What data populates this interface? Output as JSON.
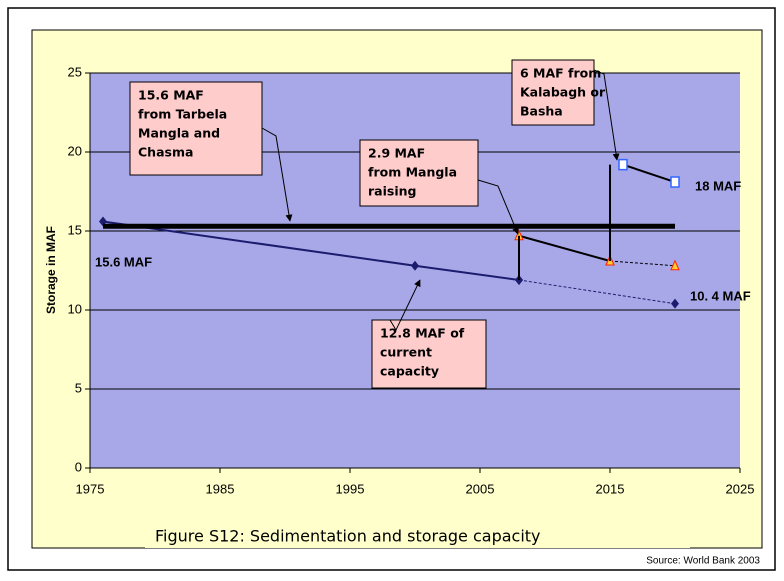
{
  "chart_data": {
    "type": "line",
    "y_label": "Storage in MAF",
    "caption": "Figure S12:  Sedimentation and storage capacity",
    "source": "Source: World Bank 2003",
    "xlim": [
      1975,
      2025
    ],
    "xticks": [
      1975,
      1985,
      1995,
      2005,
      2015,
      2025
    ],
    "ylim": [
      0,
      25
    ],
    "yticks": [
      0,
      5,
      10,
      15,
      20,
      25
    ],
    "grid": true,
    "series": [
      {
        "color": "#1c1c6e",
        "marker": "diamond",
        "x": [
          1976,
          2000,
          2008
        ],
        "values": [
          15.6,
          12.8,
          11.9
        ]
      },
      {
        "color": "#1c1c6e",
        "marker": "diamond",
        "dash": true,
        "x": [
          2008,
          2020
        ],
        "values": [
          11.9,
          10.4
        ]
      },
      {
        "color": "#000000",
        "marker": "triangle",
        "x": [
          2008,
          2015
        ],
        "values": [
          14.7,
          13.1
        ]
      },
      {
        "color": "#000000",
        "marker": "triangle",
        "dash": true,
        "x": [
          2015,
          2020
        ],
        "values": [
          13.1,
          12.8
        ]
      },
      {
        "color": "#000000",
        "marker": "square",
        "x": [
          2016,
          2020
        ],
        "values": [
          19.2,
          18.1
        ]
      },
      {
        "color": "#000000",
        "x": [
          2008,
          2008
        ],
        "values": [
          11.9,
          14.7
        ]
      },
      {
        "color": "#000000",
        "x": [
          2015,
          2015
        ],
        "values": [
          13.1,
          19.2
        ]
      },
      {
        "color": "#000000",
        "width": 5,
        "x": [
          1976,
          2020
        ],
        "values": [
          15.3,
          15.3
        ]
      }
    ],
    "labels": [
      "15.6 MAF",
      "10. 4 MAF",
      "18 MAF"
    ],
    "annotations": [
      [
        "15.6 MAF",
        "from Tarbela",
        "Mangla and",
        "Chasma"
      ],
      [
        "2.9 MAF",
        "from Mangla",
        "raising"
      ],
      [
        "6 MAF from",
        "Kalabagh or",
        "Basha"
      ],
      [
        "12.8 MAF of",
        "current",
        "capacity"
      ]
    ]
  }
}
